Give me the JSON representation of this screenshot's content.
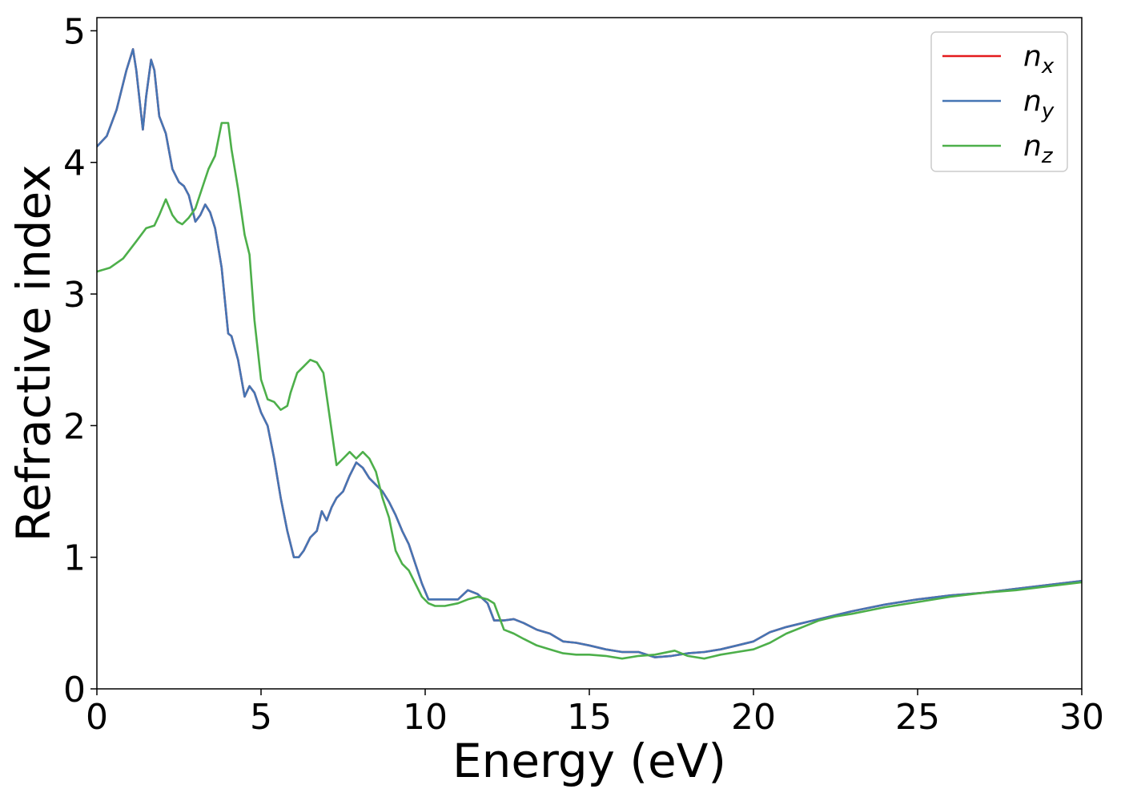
{
  "chart_data": {
    "type": "line",
    "title": "",
    "xlabel": "Energy (eV)",
    "ylabel": "Refractive index",
    "xlim": [
      0,
      30
    ],
    "ylim": [
      0,
      5.1
    ],
    "xticks": [
      0,
      5,
      10,
      15,
      20,
      25,
      30
    ],
    "yticks": [
      0,
      1,
      2,
      3,
      4,
      5
    ],
    "grid": false,
    "legend": "top-right",
    "series": [
      {
        "name": "n",
        "subscript": "x",
        "color": "#e41a1c",
        "x": [
          0,
          0.3,
          0.6,
          0.9,
          1.1,
          1.2,
          1.4,
          1.5,
          1.65,
          1.75,
          1.9,
          2.1,
          2.3,
          2.5,
          2.65,
          2.8,
          3.0,
          3.15,
          3.3,
          3.45,
          3.6,
          3.8,
          4.0,
          4.1,
          4.3,
          4.5,
          4.65,
          4.8,
          5.0,
          5.2,
          5.4,
          5.6,
          5.8,
          6.0,
          6.15,
          6.3,
          6.5,
          6.7,
          6.85,
          7.0,
          7.15,
          7.3,
          7.5,
          7.7,
          7.9,
          8.1,
          8.3,
          8.5,
          8.7,
          8.9,
          9.1,
          9.3,
          9.5,
          9.7,
          9.9,
          10.1,
          10.3,
          10.6,
          11.0,
          11.3,
          11.6,
          11.9,
          12.1,
          12.4,
          12.7,
          13.0,
          13.4,
          13.8,
          14.2,
          14.6,
          15.0,
          15.5,
          16.0,
          16.5,
          17.0,
          17.5,
          18.0,
          18.5,
          19.0,
          19.5,
          20.0,
          20.5,
          21.0,
          21.5,
          22.0,
          22.5,
          23.0,
          24.0,
          25.0,
          26.0,
          27.0,
          28.0,
          29.0,
          30.0
        ],
        "y": [
          4.12,
          4.2,
          4.4,
          4.7,
          4.86,
          4.7,
          4.25,
          4.5,
          4.78,
          4.7,
          4.35,
          4.22,
          3.95,
          3.85,
          3.82,
          3.75,
          3.55,
          3.6,
          3.68,
          3.62,
          3.5,
          3.2,
          2.7,
          2.68,
          2.5,
          2.22,
          2.3,
          2.25,
          2.1,
          2.0,
          1.75,
          1.45,
          1.2,
          1.0,
          1.0,
          1.05,
          1.15,
          1.2,
          1.35,
          1.28,
          1.38,
          1.45,
          1.5,
          1.62,
          1.72,
          1.68,
          1.6,
          1.55,
          1.5,
          1.42,
          1.32,
          1.2,
          1.1,
          0.95,
          0.8,
          0.68,
          0.68,
          0.68,
          0.68,
          0.75,
          0.72,
          0.65,
          0.52,
          0.52,
          0.53,
          0.5,
          0.45,
          0.42,
          0.36,
          0.35,
          0.33,
          0.3,
          0.28,
          0.28,
          0.24,
          0.25,
          0.27,
          0.28,
          0.3,
          0.33,
          0.36,
          0.43,
          0.47,
          0.5,
          0.53,
          0.56,
          0.59,
          0.64,
          0.68,
          0.71,
          0.73,
          0.76,
          0.79,
          0.82
        ]
      },
      {
        "name": "n",
        "subscript": "y",
        "color": "#4575b4",
        "x": [
          0,
          0.3,
          0.6,
          0.9,
          1.1,
          1.2,
          1.4,
          1.5,
          1.65,
          1.75,
          1.9,
          2.1,
          2.3,
          2.5,
          2.65,
          2.8,
          3.0,
          3.15,
          3.3,
          3.45,
          3.6,
          3.8,
          4.0,
          4.1,
          4.3,
          4.5,
          4.65,
          4.8,
          5.0,
          5.2,
          5.4,
          5.6,
          5.8,
          6.0,
          6.15,
          6.3,
          6.5,
          6.7,
          6.85,
          7.0,
          7.15,
          7.3,
          7.5,
          7.7,
          7.9,
          8.1,
          8.3,
          8.5,
          8.7,
          8.9,
          9.1,
          9.3,
          9.5,
          9.7,
          9.9,
          10.1,
          10.3,
          10.6,
          11.0,
          11.3,
          11.6,
          11.9,
          12.1,
          12.4,
          12.7,
          13.0,
          13.4,
          13.8,
          14.2,
          14.6,
          15.0,
          15.5,
          16.0,
          16.5,
          17.0,
          17.5,
          18.0,
          18.5,
          19.0,
          19.5,
          20.0,
          20.5,
          21.0,
          21.5,
          22.0,
          22.5,
          23.0,
          24.0,
          25.0,
          26.0,
          27.0,
          28.0,
          29.0,
          30.0
        ],
        "y": [
          4.12,
          4.2,
          4.4,
          4.7,
          4.86,
          4.7,
          4.25,
          4.5,
          4.78,
          4.7,
          4.35,
          4.22,
          3.95,
          3.85,
          3.82,
          3.75,
          3.55,
          3.6,
          3.68,
          3.62,
          3.5,
          3.2,
          2.7,
          2.68,
          2.5,
          2.22,
          2.3,
          2.25,
          2.1,
          2.0,
          1.75,
          1.45,
          1.2,
          1.0,
          1.0,
          1.05,
          1.15,
          1.2,
          1.35,
          1.28,
          1.38,
          1.45,
          1.5,
          1.62,
          1.72,
          1.68,
          1.6,
          1.55,
          1.5,
          1.42,
          1.32,
          1.2,
          1.1,
          0.95,
          0.8,
          0.68,
          0.68,
          0.68,
          0.68,
          0.75,
          0.72,
          0.65,
          0.52,
          0.52,
          0.53,
          0.5,
          0.45,
          0.42,
          0.36,
          0.35,
          0.33,
          0.3,
          0.28,
          0.28,
          0.24,
          0.25,
          0.27,
          0.28,
          0.3,
          0.33,
          0.36,
          0.43,
          0.47,
          0.5,
          0.53,
          0.56,
          0.59,
          0.64,
          0.68,
          0.71,
          0.73,
          0.76,
          0.79,
          0.82
        ]
      },
      {
        "name": "n",
        "subscript": "z",
        "color": "#4daf4a",
        "x": [
          0,
          0.4,
          0.8,
          1.2,
          1.5,
          1.75,
          1.9,
          2.1,
          2.3,
          2.45,
          2.6,
          2.8,
          3.0,
          3.2,
          3.4,
          3.6,
          3.8,
          4.0,
          4.1,
          4.3,
          4.5,
          4.65,
          4.8,
          5.0,
          5.2,
          5.4,
          5.6,
          5.8,
          5.9,
          6.1,
          6.3,
          6.5,
          6.7,
          6.9,
          7.1,
          7.3,
          7.5,
          7.7,
          7.9,
          8.1,
          8.3,
          8.5,
          8.7,
          8.9,
          9.1,
          9.3,
          9.5,
          9.7,
          9.9,
          10.1,
          10.3,
          10.6,
          11.0,
          11.3,
          11.6,
          11.9,
          12.1,
          12.4,
          12.7,
          13.0,
          13.4,
          13.8,
          14.2,
          14.6,
          15.0,
          15.5,
          16.0,
          16.5,
          17.0,
          17.6,
          18.0,
          18.5,
          19.0,
          19.5,
          20.0,
          20.5,
          21.0,
          21.5,
          22.0,
          22.5,
          23.0,
          24.0,
          25.0,
          26.0,
          27.0,
          28.0,
          29.0,
          30.0
        ],
        "y": [
          3.17,
          3.2,
          3.27,
          3.4,
          3.5,
          3.52,
          3.6,
          3.72,
          3.6,
          3.55,
          3.53,
          3.58,
          3.65,
          3.8,
          3.95,
          4.05,
          4.3,
          4.3,
          4.1,
          3.8,
          3.45,
          3.3,
          2.8,
          2.35,
          2.2,
          2.18,
          2.12,
          2.15,
          2.25,
          2.4,
          2.45,
          2.5,
          2.48,
          2.4,
          2.05,
          1.7,
          1.75,
          1.8,
          1.75,
          1.8,
          1.75,
          1.65,
          1.45,
          1.3,
          1.05,
          0.95,
          0.9,
          0.8,
          0.7,
          0.65,
          0.63,
          0.63,
          0.65,
          0.68,
          0.7,
          0.68,
          0.65,
          0.45,
          0.42,
          0.38,
          0.33,
          0.3,
          0.27,
          0.26,
          0.26,
          0.25,
          0.23,
          0.25,
          0.26,
          0.29,
          0.25,
          0.23,
          0.26,
          0.28,
          0.3,
          0.35,
          0.42,
          0.47,
          0.52,
          0.55,
          0.57,
          0.62,
          0.66,
          0.7,
          0.73,
          0.75,
          0.78,
          0.81
        ]
      }
    ]
  }
}
